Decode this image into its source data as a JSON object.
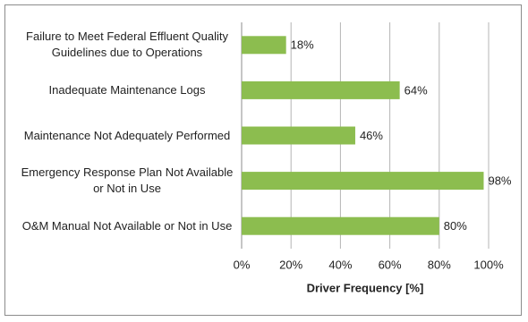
{
  "chart_data": {
    "type": "bar",
    "orientation": "horizontal",
    "categories": [
      "Failure to Meet Federal Effluent Quality Guidelines due to Operations",
      "Inadequate Maintenance Logs",
      "Maintenance Not Adequately Performed",
      "Emergency Response Plan Not Available or Not in Use",
      "O&M Manual Not Available or Not in Use"
    ],
    "values": [
      18,
      64,
      46,
      98,
      80
    ],
    "value_labels": [
      "18%",
      "64%",
      "46%",
      "98%",
      "80%"
    ],
    "color": "#8cbd4f",
    "x_label": "Driver Frequency [%]",
    "xlim": [
      0,
      100
    ],
    "xticks": [
      {
        "value": 0,
        "label": "0%"
      },
      {
        "value": 20,
        "label": "20%"
      },
      {
        "value": 40,
        "label": "40%"
      },
      {
        "value": 60,
        "label": "60%"
      },
      {
        "value": 80,
        "label": "80%"
      },
      {
        "value": 100,
        "label": "100%"
      }
    ],
    "grid": true
  }
}
